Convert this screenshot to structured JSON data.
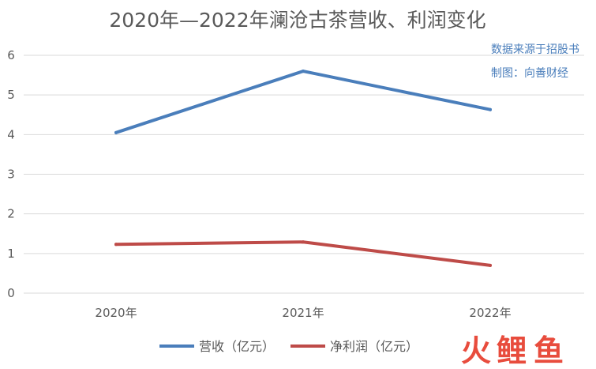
{
  "chart_data": {
    "type": "line",
    "title": "2020年—2022年澜沧古茶营收、利润变化",
    "categories": [
      "2020年",
      "2021年",
      "2022年"
    ],
    "series": [
      {
        "name": "营收（亿元）",
        "values": [
          4.05,
          5.6,
          4.63
        ],
        "color": "#4a7ebb"
      },
      {
        "name": "净利润（亿元）",
        "values": [
          1.23,
          1.29,
          0.7
        ],
        "color": "#be4b48"
      }
    ],
    "y_ticks": [
      "0",
      "1",
      "2",
      "3",
      "4",
      "5",
      "6"
    ],
    "ylim": [
      0,
      6
    ],
    "grid": "horizontal",
    "legend_position": "bottom"
  },
  "source_note": {
    "line1": "数据来源于招股书",
    "line2": "制图：向善财经",
    "color": "#4a7ebb"
  },
  "watermark": {
    "chars": [
      "火",
      "鲤",
      "鱼"
    ],
    "colors": [
      "#e84c3d",
      "#e84c3d",
      "#e84c3d"
    ]
  }
}
